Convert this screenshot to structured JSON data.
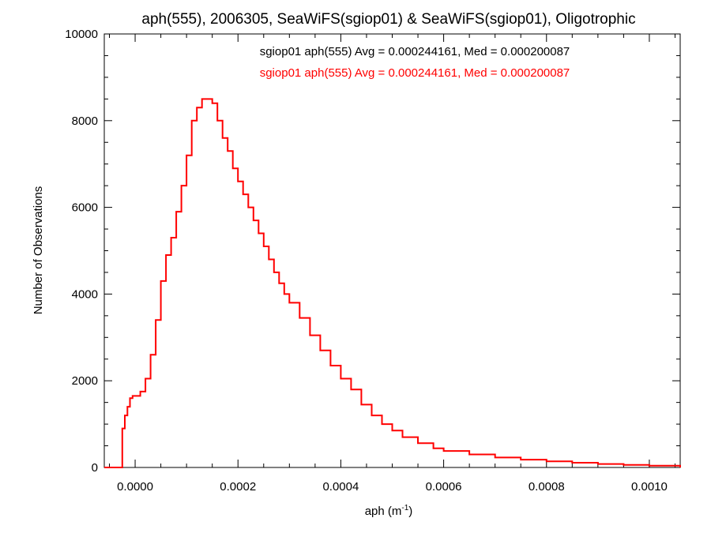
{
  "chart_data": {
    "type": "histogram",
    "title": "aph(555), 2006305, SeaWiFS(sgiop01) & SeaWiFS(sgiop01), Oligotrophic",
    "xlabel_main": "aph (m",
    "xlabel_sup": "-1",
    "xlabel_close": ")",
    "ylabel": "Number of Observations",
    "xlim": [
      -6e-05,
      0.00106
    ],
    "ylim": [
      0,
      10000
    ],
    "x_ticks": [
      {
        "value": 0.0,
        "label": "0.0000"
      },
      {
        "value": 0.0002,
        "label": "0.0002"
      },
      {
        "value": 0.0004,
        "label": "0.0004"
      },
      {
        "value": 0.0006,
        "label": "0.0006"
      },
      {
        "value": 0.0008,
        "label": "0.0008"
      },
      {
        "value": 0.001,
        "label": "0.0010"
      }
    ],
    "y_ticks": [
      {
        "value": 0,
        "label": "0"
      },
      {
        "value": 2000,
        "label": "2000"
      },
      {
        "value": 4000,
        "label": "4000"
      },
      {
        "value": 6000,
        "label": "6000"
      },
      {
        "value": 8000,
        "label": "8000"
      },
      {
        "value": 10000,
        "label": "10000"
      }
    ],
    "grid": false,
    "legend_placement": "top-center",
    "legend": [
      {
        "text": "sgiop01 aph(555) Avg = 0.000244161, Med = 0.000200087",
        "color": "#000000"
      },
      {
        "text": "sgiop01 aph(555) Avg = 0.000244161, Med = 0.000200087",
        "color": "#ff0000"
      }
    ],
    "series": [
      {
        "color": "#ff0000",
        "x": [
          -6e-05,
          -3e-05,
          -2.5e-05,
          -2e-05,
          -1.5e-05,
          -1e-05,
          -5e-06,
          0.0,
          1e-05,
          2e-05,
          3e-05,
          4e-05,
          5e-05,
          6e-05,
          7e-05,
          8e-05,
          9e-05,
          0.0001,
          0.00011,
          0.00012,
          0.00013,
          0.00014,
          0.00015,
          0.00016,
          0.00017,
          0.00018,
          0.00019,
          0.0002,
          0.00021,
          0.00022,
          0.00023,
          0.00024,
          0.00025,
          0.00026,
          0.00027,
          0.00028,
          0.00029,
          0.0003,
          0.00032,
          0.00034,
          0.00036,
          0.00038,
          0.0004,
          0.00042,
          0.00044,
          0.00046,
          0.00048,
          0.0005,
          0.00052,
          0.00055,
          0.00058,
          0.0006,
          0.00065,
          0.0007,
          0.00075,
          0.0008,
          0.00085,
          0.0009,
          0.00095,
          0.001,
          0.00106
        ],
        "y": [
          0,
          0,
          900,
          1200,
          1400,
          1600,
          1650,
          1650,
          1750,
          2050,
          2600,
          3400,
          4300,
          4900,
          5300,
          5900,
          6500,
          7200,
          8000,
          8300,
          8500,
          8500,
          8400,
          8000,
          7600,
          7300,
          6900,
          6600,
          6300,
          6000,
          5700,
          5400,
          5100,
          4800,
          4500,
          4250,
          4000,
          3800,
          3450,
          3050,
          2700,
          2350,
          2050,
          1800,
          1450,
          1200,
          1000,
          850,
          700,
          560,
          440,
          380,
          300,
          230,
          180,
          140,
          110,
          80,
          60,
          40,
          0
        ]
      }
    ]
  }
}
